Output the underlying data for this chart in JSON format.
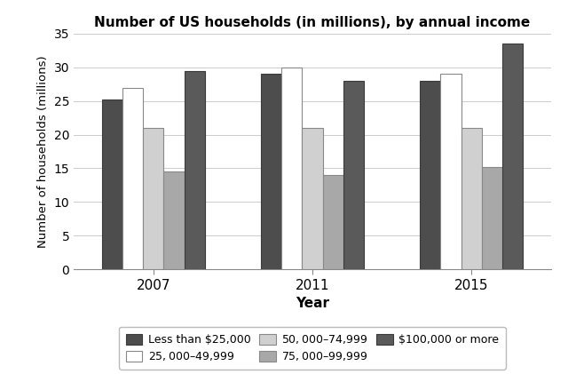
{
  "title": "Number of US households (in millions), by annual income",
  "xlabel": "Year",
  "ylabel": "Number of households (millions)",
  "years": [
    "2007",
    "2011",
    "2015"
  ],
  "categories": [
    "Less than $25,000",
    "$25,000–$49,999",
    "$50,000–$74,999",
    "$75,000–$99,999",
    "$100,000 or more"
  ],
  "values": {
    "Less than $25,000": [
      25.2,
      29.0,
      28.0
    ],
    "$25,000–$49,999": [
      27.0,
      30.0,
      29.0
    ],
    "$50,000–$74,999": [
      21.0,
      21.0,
      21.0
    ],
    "$75,000–$99,999": [
      14.5,
      14.0,
      15.2
    ],
    "$100,000 or more": [
      29.5,
      28.0,
      33.5
    ]
  },
  "colors": {
    "Less than $25,000": "#4d4d4d",
    "$25,000–$49,999": "#ffffff",
    "$50,000–$74,999": "#d0d0d0",
    "$75,000–$99,999": "#a8a8a8",
    "$100,000 or more": "#5a5a5a"
  },
  "edgecolors": {
    "Less than $25,000": "#3a3a3a",
    "$25,000–$49,999": "#888888",
    "$50,000–$74,999": "#888888",
    "$75,000–$99,999": "#888888",
    "$100,000 or more": "#3a3a3a"
  },
  "ylim": [
    0,
    35
  ],
  "yticks": [
    0,
    5,
    10,
    15,
    20,
    25,
    30,
    35
  ],
  "bar_width": 0.13,
  "figsize": [
    6.4,
    4.21
  ],
  "dpi": 100
}
